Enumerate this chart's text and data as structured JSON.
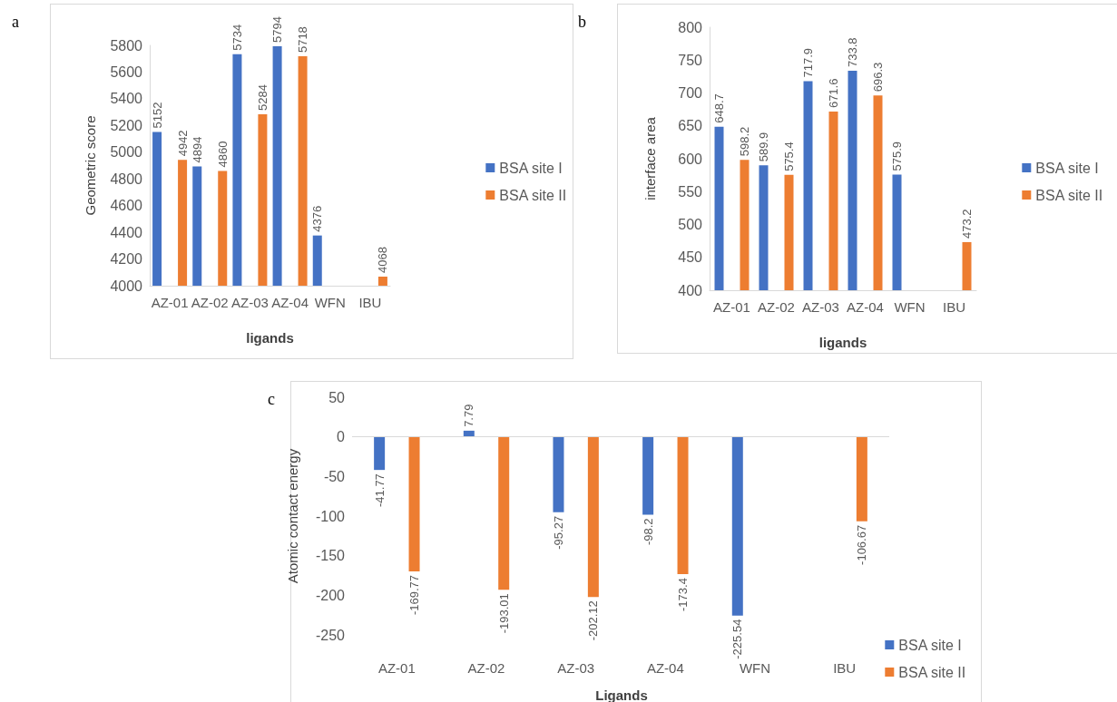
{
  "chart_data": [
    {
      "type": "bar",
      "title": "a",
      "xlabel": "ligands",
      "ylabel": "Geometric score",
      "categories": [
        "AZ-01",
        "AZ-02",
        "AZ-03",
        "AZ-04",
        "WFN",
        "IBU"
      ],
      "series": [
        {
          "name": "BSA site I",
          "color": "#4472c4",
          "values": [
            5152,
            4894,
            5734,
            5794,
            4376,
            null
          ]
        },
        {
          "name": "BSA site II",
          "color": "#ed7d31",
          "values": [
            4942,
            4860,
            5284,
            5718,
            null,
            4068
          ]
        }
      ],
      "ylim": [
        4000,
        5800
      ],
      "yticks": [
        4000,
        4200,
        4400,
        4600,
        4800,
        5000,
        5200,
        5400,
        5600,
        5800
      ],
      "grid": false,
      "legend": "right",
      "data_labels": true
    },
    {
      "type": "bar",
      "title": "b",
      "xlabel": "ligands",
      "ylabel": "interface area",
      "categories": [
        "AZ-01",
        "AZ-02",
        "AZ-03",
        "AZ-04",
        "WFN",
        "IBU"
      ],
      "series": [
        {
          "name": "BSA site I",
          "color": "#4472c4",
          "values": [
            648.7,
            589.9,
            717.9,
            733.8,
            575.9,
            null
          ]
        },
        {
          "name": "BSA site II",
          "color": "#ed7d31",
          "values": [
            598.2,
            575.4,
            671.6,
            696.3,
            null,
            473.2
          ]
        }
      ],
      "ylim": [
        400,
        800
      ],
      "yticks": [
        400,
        450,
        500,
        550,
        600,
        650,
        700,
        750,
        800
      ],
      "grid": false,
      "legend": "right",
      "data_labels": true
    },
    {
      "type": "bar",
      "title": "c",
      "xlabel": "Ligands",
      "ylabel": "Atomic contact energy",
      "categories": [
        "AZ-01",
        "AZ-02",
        "AZ-03",
        "AZ-04",
        "WFN",
        "IBU"
      ],
      "series": [
        {
          "name": "BSA site I",
          "color": "#4472c4",
          "values": [
            -41.77,
            7.79,
            -95.27,
            -98.2,
            -225.54,
            null
          ]
        },
        {
          "name": "BSA site II",
          "color": "#ed7d31",
          "values": [
            -169.77,
            -193.01,
            -202.12,
            -173.4,
            null,
            -106.67
          ]
        }
      ],
      "ylim": [
        -250,
        50
      ],
      "yticks": [
        -250,
        -200,
        -150,
        -100,
        -50,
        0,
        50
      ],
      "ref_lines": [
        {
          "axis": "y",
          "value": 0,
          "color": "#d9d9d9"
        }
      ],
      "grid": false,
      "legend": "bottom right",
      "data_labels": true
    }
  ]
}
